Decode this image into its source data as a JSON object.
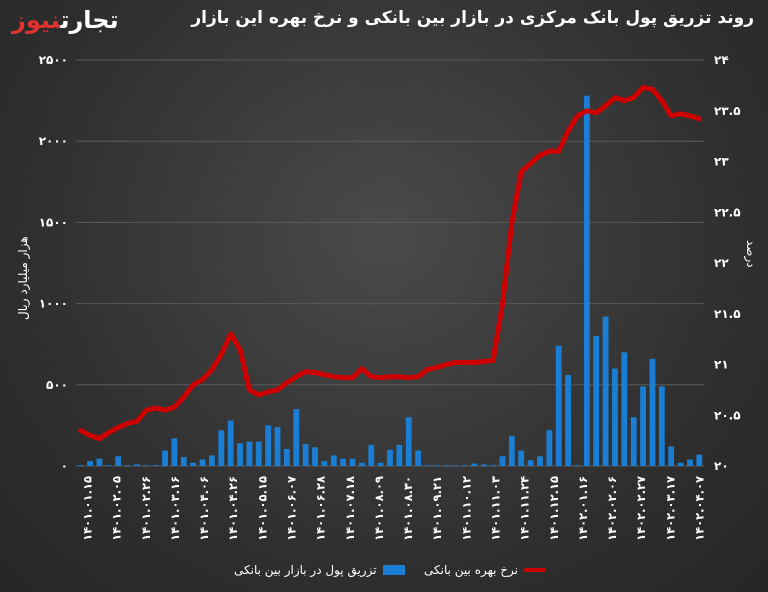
{
  "title": "روند تزریق پول بانک مرکزی در بازار بین بانکی و نرخ بهره این بازار",
  "logo": {
    "part1": "تجارت",
    "part2": "نیوز"
  },
  "colors": {
    "bars": "#1a7fd4",
    "line": "#cc0000",
    "grid": "#5a5a5a",
    "text": "#ffffff"
  },
  "chart_data": {
    "type": "bar",
    "title": "روند تزریق پول بانک مرکزی در بازار بین بانکی و نرخ بهره این بازار",
    "y_left": {
      "label": "هزار میلیارد ریال",
      "ylim": [
        0,
        2500
      ],
      "ticks": [
        "۰",
        "۵۰۰",
        "۱۰۰۰",
        "۱۵۰۰",
        "۲۰۰۰",
        "۲۵۰۰"
      ],
      "tick_values": [
        0,
        500,
        1000,
        1500,
        2000,
        2500
      ]
    },
    "y_right": {
      "label": "درصد",
      "ylim": [
        20,
        24
      ],
      "ticks": [
        "۲۰",
        "۲۰.۵",
        "۲۱",
        "۲۱.۵",
        "۲۲",
        "۲۲.۵",
        "۲۳",
        "۲۳.۵",
        "۲۴"
      ],
      "tick_values": [
        20,
        20.5,
        21,
        21.5,
        22,
        22.5,
        23,
        23.5,
        24
      ]
    },
    "x_tick_labels": [
      "۱۴۰۱.۰۱.۱۵",
      "۱۴۰۱.۰۲.۰۵",
      "۱۴۰۱.۰۲.۲۶",
      "۱۴۰۱.۰۳.۱۶",
      "۱۴۰۱.۰۴.۰۶",
      "۱۴۰۱.۰۴.۲۶",
      "۱۴۰۱.۰۵.۱۵",
      "۱۴۰۱.۰۶.۰۷",
      "۱۴۰۱.۰۶.۲۸",
      "۱۴۰۱.۰۷.۱۸",
      "۱۴۰۱.۰۸.۰۹",
      "۱۴۰۱.۰۸.۳۰",
      "۱۴۰۱.۰۹.۲۱",
      "۱۴۰۱.۱۰.۱۲",
      "۱۴۰۱.۱۱.۰۳",
      "۱۴۰۱.۱۱.۲۴",
      "۱۴۰۱.۱۲.۱۵",
      "۱۴۰۲.۰۱.۱۶",
      "۱۴۰۲.۰۲.۰۶",
      "۱۴۰۲.۰۲.۲۷",
      "۱۴۰۲.۰۳.۱۷",
      "۱۴۰۲.۰۴.۰۷"
    ],
    "bar_series": {
      "name": "تزریق پول در بازار بین بانکی",
      "values": [
        5,
        30,
        45,
        5,
        60,
        5,
        10,
        5,
        5,
        95,
        170,
        55,
        20,
        40,
        65,
        220,
        280,
        140,
        150,
        150,
        250,
        240,
        105,
        350,
        135,
        115,
        30,
        65,
        45,
        45,
        20,
        130,
        20,
        100,
        130,
        300,
        95,
        5,
        5,
        5,
        5,
        5,
        15,
        10,
        5,
        60,
        185,
        95,
        35,
        60,
        220,
        740,
        560,
        5,
        2280,
        800,
        920,
        600,
        700,
        300,
        490,
        660,
        490,
        120,
        20,
        40,
        70
      ]
    },
    "line_series": {
      "name": "نرخ بهره بین بانکی",
      "values": [
        20.35,
        20.3,
        20.27,
        20.33,
        20.38,
        20.42,
        20.44,
        20.55,
        20.57,
        20.55,
        20.58,
        20.68,
        20.8,
        20.85,
        20.95,
        21.1,
        21.3,
        21.15,
        20.75,
        20.7,
        20.73,
        20.75,
        20.82,
        20.88,
        20.93,
        20.92,
        20.9,
        20.88,
        20.87,
        20.87,
        20.96,
        20.88,
        20.87,
        20.88,
        20.88,
        20.87,
        20.88,
        20.95,
        20.97,
        21.0,
        21.02,
        21.02,
        21.02,
        21.03,
        21.04,
        21.6,
        22.4,
        22.9,
        22.98,
        23.06,
        23.1,
        23.1,
        23.3,
        23.45,
        23.5,
        23.48,
        23.55,
        23.63,
        23.6,
        23.63,
        23.73,
        23.71,
        23.6,
        23.45,
        23.47,
        23.45,
        23.42
      ]
    },
    "legend_placement": "bottom",
    "grid": true
  }
}
